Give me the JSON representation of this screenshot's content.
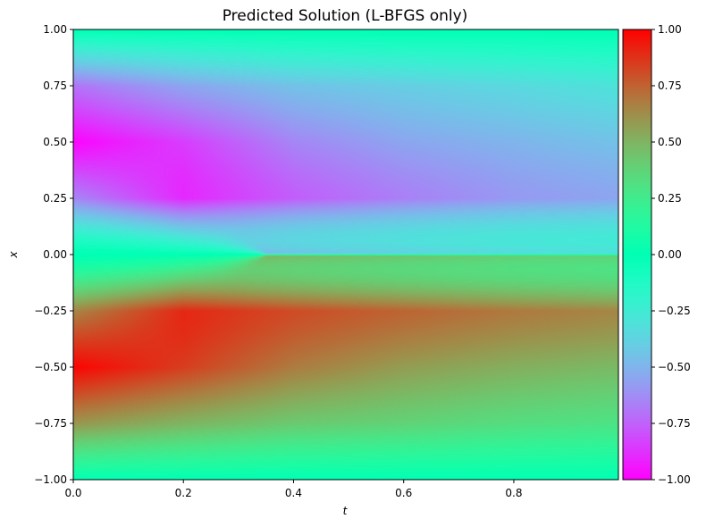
{
  "chart_data": {
    "type": "heatmap",
    "title": "Predicted Solution (L-BFGS only)",
    "xlabel": "t",
    "ylabel": "x",
    "xlim": [
      0,
      0.99
    ],
    "ylim": [
      -1,
      1
    ],
    "xticks": [
      "0.0",
      "0.2",
      "0.4",
      "0.6",
      "0.8"
    ],
    "yticks": [
      "1.00",
      "0.75",
      "0.50",
      "0.25",
      "0.00",
      "−0.25",
      "−0.50",
      "−0.75",
      "−1.00"
    ],
    "colorbar": {
      "colormap": "rainbow",
      "range": [
        -1,
        1
      ],
      "ticks": [
        "1.00",
        "0.75",
        "0.50",
        "0.25",
        "0.00",
        "−0.25",
        "−0.50",
        "−0.75",
        "−1.00"
      ]
    },
    "field_description": "u(t,x) solution: at t=0 u ≈ -sin(pi x); a shock forms at x=0 near t≈0.35 and persists; amplitude decays with t",
    "samples": {
      "t": [
        0.0,
        0.2,
        0.4,
        0.6,
        0.8,
        0.99
      ],
      "x": [
        1.0,
        0.75,
        0.5,
        0.25,
        0.0,
        -0.25,
        -0.5,
        -0.75,
        -1.0
      ],
      "u": [
        [
          0.0,
          0.0,
          0.0,
          0.0,
          0.0,
          0.0
        ],
        [
          -0.7,
          -0.55,
          -0.45,
          -0.4,
          -0.35,
          -0.3
        ],
        [
          -1.0,
          -0.85,
          -0.65,
          -0.55,
          -0.5,
          -0.45
        ],
        [
          -0.7,
          -0.95,
          -0.8,
          -0.7,
          -0.62,
          -0.58
        ],
        [
          0.0,
          0.0,
          0.0,
          0.0,
          0.0,
          0.0
        ],
        [
          0.7,
          0.95,
          0.85,
          0.78,
          0.72,
          0.68
        ],
        [
          1.0,
          0.85,
          0.68,
          0.58,
          0.52,
          0.48
        ],
        [
          0.6,
          0.5,
          0.42,
          0.38,
          0.33,
          0.3
        ],
        [
          0.0,
          0.0,
          0.0,
          0.0,
          0.0,
          0.0
        ]
      ]
    }
  }
}
